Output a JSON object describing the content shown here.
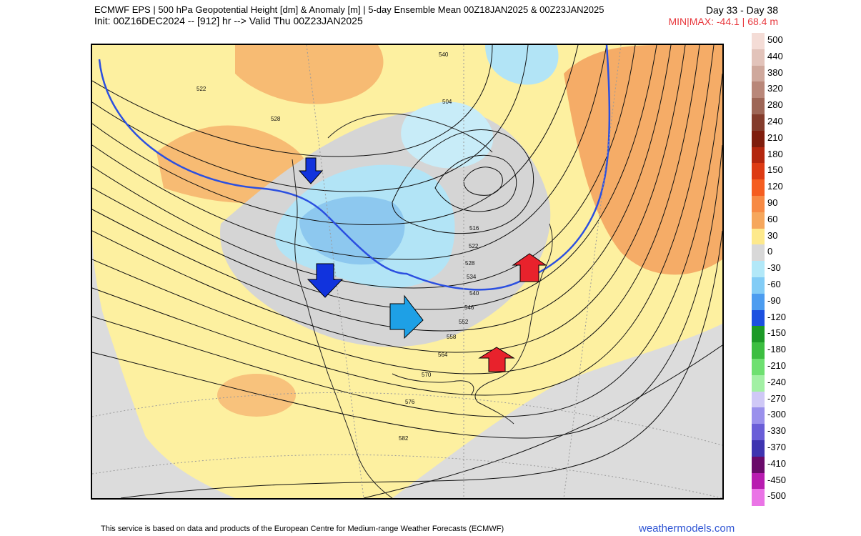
{
  "header": {
    "line1": "ECMWF EPS | 500 hPa Geopotential Height [dm] & Anomaly [m] | 5-day Ensemble Mean 00Z18JAN2025 & 00Z23JAN2025",
    "line2": "Init: 00Z16DEC2024 -- [912] hr --> Valid Thu 00Z23JAN2025",
    "days": "Day 33 - Day 38",
    "minmax": "MIN|MAX: -44.1 | 68.4 m"
  },
  "legend": {
    "labels": [
      "500",
      "440",
      "380",
      "320",
      "280",
      "240",
      "210",
      "180",
      "150",
      "120",
      "90",
      "60",
      "30",
      "0",
      "-30",
      "-60",
      "-90",
      "-120",
      "-150",
      "-180",
      "-210",
      "-240",
      "-270",
      "-300",
      "-330",
      "-370",
      "-410",
      "-450",
      "-500"
    ],
    "colors": [
      "#f4dcd6",
      "#e2c3ba",
      "#cfa89c",
      "#b98779",
      "#9e6656",
      "#843c2c",
      "#7f1d0d",
      "#b3260e",
      "#dd3b14",
      "#f55d20",
      "#f78a44",
      "#f6a75c",
      "#fde98c",
      "#d8d8d8",
      "#b2e8f8",
      "#82ccf6",
      "#4c9cf0",
      "#1c50e0",
      "#1c9a26",
      "#3cbe40",
      "#6ee070",
      "#a2f0a4",
      "#cfc8f6",
      "#9a90ec",
      "#6a5ed8",
      "#3e34b0",
      "#6a0a6a",
      "#b81cb0",
      "#ea74e6"
    ]
  },
  "contours": {
    "labels": [
      "522",
      "528",
      "540",
      "504",
      "516",
      "522",
      "528",
      "534",
      "540",
      "546",
      "552",
      "558",
      "564",
      "570",
      "576",
      "582"
    ]
  },
  "arrows": {
    "blue": "#1133dd",
    "lightblue": "#1ea0e6",
    "red": "#e8222c"
  },
  "footer": {
    "note": "This service is based on data and products of the European Centre for Medium-range Weather Forecasts (ECMWF)",
    "brand": "weathermodels.com"
  }
}
